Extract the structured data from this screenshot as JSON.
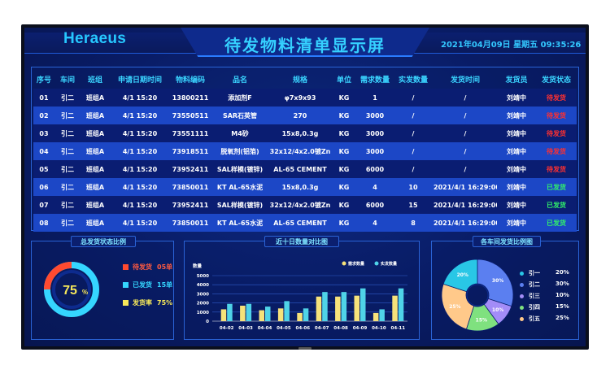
{
  "header": {
    "brand": "Heraeus",
    "title": "待发物料清单显示屏",
    "datetime": "2021年04月09日  星期五  09:35:26"
  },
  "table": {
    "columns": [
      "序号",
      "车间",
      "班组",
      "申请日期时间",
      "物料编码",
      "品名",
      "规格",
      "单位",
      "需求数量",
      "实发数量",
      "发货时间",
      "发货员",
      "发货状态"
    ],
    "rows": [
      [
        "01",
        "引二",
        "班组A",
        "4/1 15:20",
        "13800211",
        "添加剂F",
        "φ7x9x93",
        "KG",
        "1",
        "/",
        "/",
        "刘靖中",
        "待发货"
      ],
      [
        "02",
        "引二",
        "班组A",
        "4/1 15:20",
        "73550511",
        "SAR石英管",
        "270",
        "KG",
        "3000",
        "/",
        "/",
        "刘靖中",
        "待发货"
      ],
      [
        "03",
        "引二",
        "班组A",
        "4/1 15:20",
        "73551111",
        "M4砂",
        "15x8,0.3g",
        "KG",
        "3000",
        "/",
        "/",
        "刘靖中",
        "待发货"
      ],
      [
        "04",
        "引二",
        "班组A",
        "4/1 15:20",
        "73918511",
        "脱氧剂(铝箔)",
        "32x12/4x2.0镀Zn",
        "KG",
        "3000",
        "/",
        "/",
        "刘靖中",
        "待发货"
      ],
      [
        "05",
        "引二",
        "班组A",
        "4/1 15:20",
        "73952411",
        "SAL样模(镀锌)",
        "AL-65 CEMENT",
        "KG",
        "6000",
        "/",
        "/",
        "刘靖中",
        "待发货"
      ],
      [
        "06",
        "引二",
        "班组A",
        "4/1 15:20",
        "73850011",
        "KT AL-65水泥",
        "15x8,0.3g",
        "KG",
        "4",
        "10",
        "2021/4/1 16:29:00",
        "刘靖中",
        "已发货"
      ],
      [
        "07",
        "引二",
        "班组A",
        "4/1 15:20",
        "73952411",
        "SAL样模(镀锌)",
        "32x12/4x2.0镀Zn",
        "KG",
        "6000",
        "15",
        "2021/4/1 16:29:00",
        "刘靖中",
        "已发货"
      ],
      [
        "08",
        "引二",
        "班组A",
        "4/1 15:20",
        "73850011",
        "KT AL-65水泥",
        "AL-65 CEMENT",
        "KG",
        "4",
        "8",
        "2021/4/1 16:29:00",
        "刘靖中",
        "已发货"
      ]
    ]
  },
  "panel1": {
    "title": "总发货状态比例",
    "center_value": "75",
    "center_unit": "%",
    "legend": [
      {
        "label": "待发货",
        "value": "05单",
        "color": "#ff4a30"
      },
      {
        "label": "已发货",
        "value": "15单",
        "color": "#35d6ff"
      },
      {
        "label": "发货率",
        "value": "75%",
        "color": "#f6e85a"
      }
    ]
  },
  "panel2": {
    "title": "近十日数量对比图"
  },
  "chart_data": [
    {
      "type": "bar",
      "title": "近十日数量对比图",
      "ylabel": "数量",
      "ylim": [
        0,
        5000
      ],
      "yticks": [
        "5000",
        "4000",
        "3000",
        "2000",
        "1000",
        "0"
      ],
      "categories": [
        "04-02",
        "04-03",
        "04-04",
        "04-05",
        "04-06",
        "04-07",
        "04-08",
        "04-09",
        "04-10",
        "04-11"
      ],
      "series": [
        {
          "name": "需求数量",
          "color": "#f6e27a",
          "values": [
            1300,
            1700,
            1200,
            1400,
            900,
            2700,
            2700,
            2800,
            900,
            2800
          ]
        },
        {
          "name": "实发数量",
          "color": "#4fd3e8",
          "values": [
            1900,
            1900,
            1600,
            2200,
            1400,
            3200,
            3200,
            3600,
            1300,
            3600
          ]
        }
      ]
    },
    {
      "type": "pie",
      "title": "各车间发货比例图",
      "categories": [
        "引一",
        "引二",
        "引三",
        "引四",
        "引五"
      ],
      "values": [
        20,
        30,
        10,
        15,
        25
      ],
      "colors": [
        "#29c7e6",
        "#5b7ff0",
        "#a38cf7",
        "#7fe17f",
        "#ffc98a"
      ],
      "value_labels": [
        "20%",
        "30%",
        "10%",
        "15%",
        "25%"
      ]
    }
  ]
}
